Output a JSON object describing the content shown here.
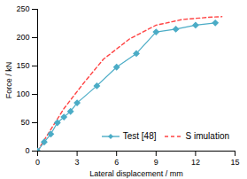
{
  "chart_data": {
    "type": "line",
    "xlabel": "Lateral displacement / mm",
    "ylabel": "Force / kN",
    "xlim": [
      0,
      15
    ],
    "ylim": [
      0,
      250
    ],
    "xticks": [
      0,
      3,
      6,
      9,
      12,
      15
    ],
    "yticks": [
      0,
      50,
      100,
      150,
      200,
      250
    ],
    "grid": false,
    "legend": "lower right",
    "series": [
      {
        "name": "Test [48]",
        "color": "#4BACC6",
        "marker": "diamond",
        "line_style": "solid",
        "x": [
          0,
          0.5,
          1.0,
          1.5,
          2.0,
          2.5,
          3.0,
          4.5,
          6.0,
          7.5,
          9.0,
          10.5,
          12.0,
          13.5
        ],
        "values": [
          0,
          16,
          30,
          50,
          60,
          70,
          85,
          115,
          148,
          172,
          210,
          215,
          222,
          226
        ]
      },
      {
        "name": "S imulation",
        "color": "#FF4444",
        "line_style": "dashed",
        "x": [
          0,
          0.3,
          1.0,
          2.0,
          3.5,
          5.0,
          7.0,
          9.0,
          11.0,
          13.0,
          14.0
        ],
        "values": [
          0,
          12,
          38,
          75,
          120,
          162,
          198,
          222,
          232,
          236,
          237
        ]
      }
    ]
  }
}
